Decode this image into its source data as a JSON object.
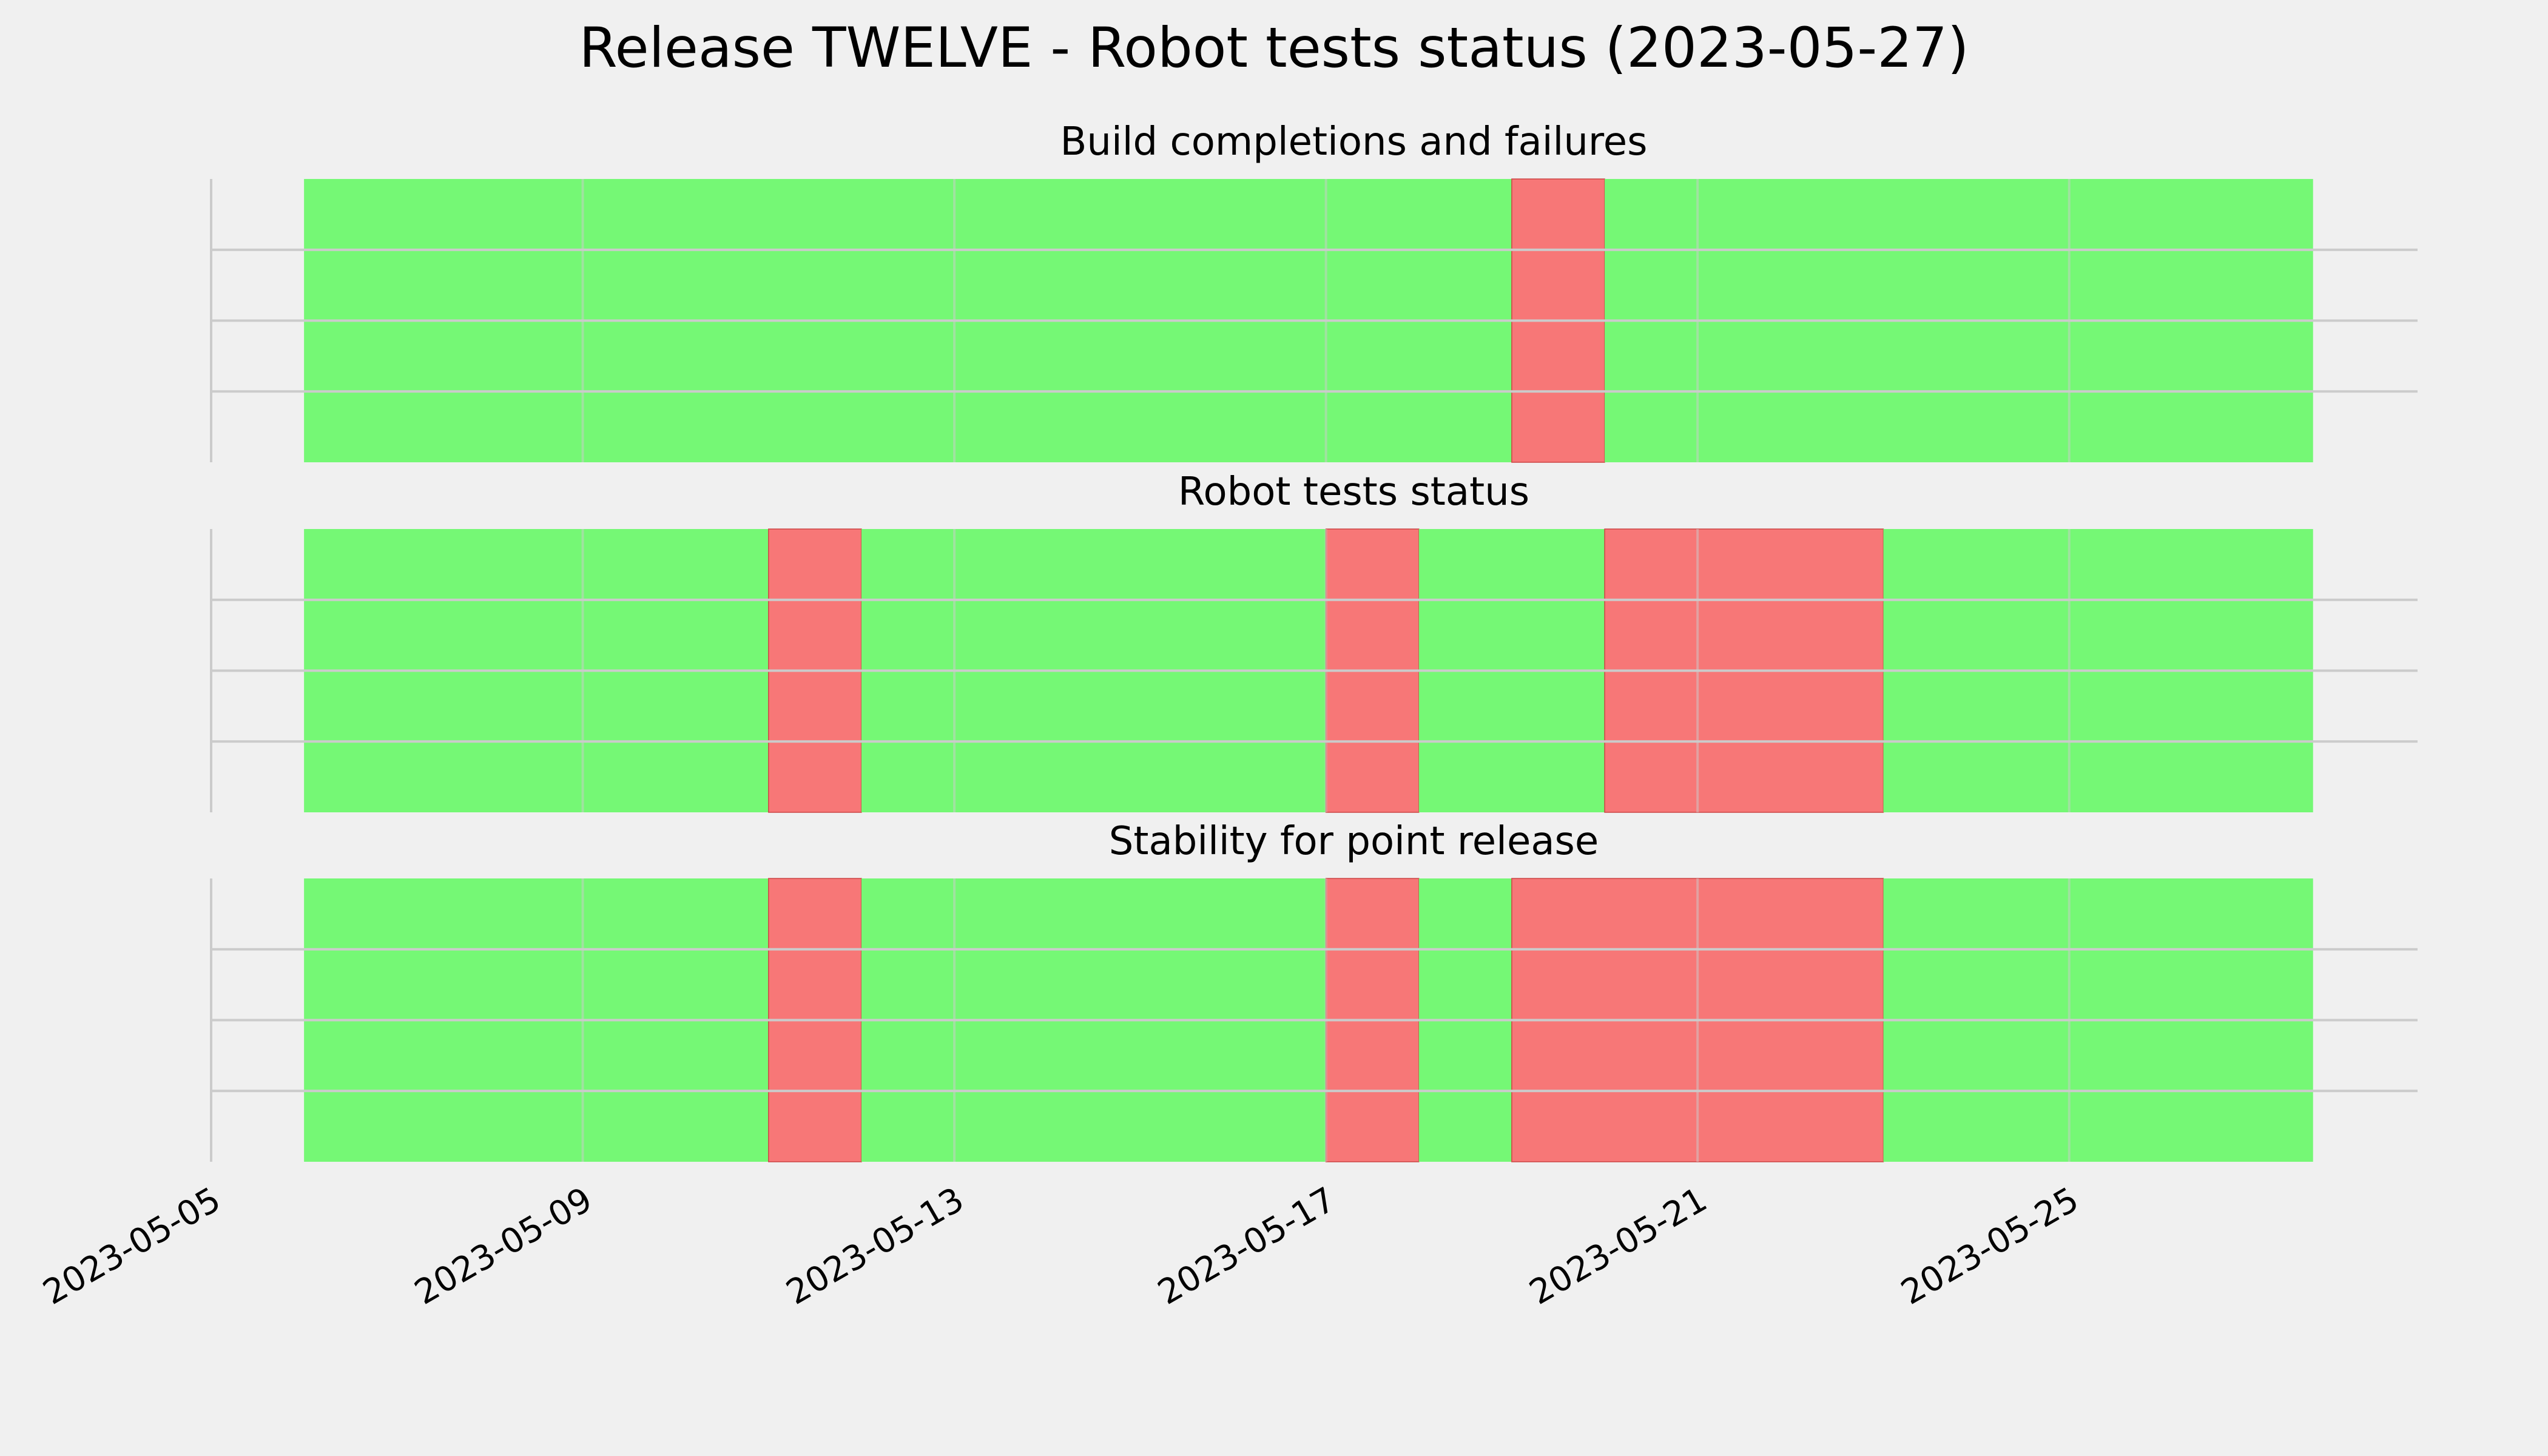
{
  "chart_data": {
    "type": "timeline",
    "title": "Release TWELVE - Robot tests status (2023-05-27)",
    "xlim": [
      "2023-05-05",
      "2023-05-28T18:00"
    ],
    "xticks": [
      "2023-05-05",
      "2023-05-09",
      "2023-05-13",
      "2023-05-17",
      "2023-05-21",
      "2023-05-25"
    ],
    "grid": true,
    "colors": {
      "pass": "#75f875",
      "fail": "#f77777",
      "background": "#f0f0f0",
      "grid": "#cbcbcb"
    },
    "panels": [
      {
        "title": "Build completions and failures",
        "segments": [
          {
            "start": "2023-05-06",
            "end": "2023-05-19",
            "status": "pass"
          },
          {
            "start": "2023-05-19",
            "end": "2023-05-20",
            "status": "fail"
          },
          {
            "start": "2023-05-20",
            "end": "2023-05-27T15:00",
            "status": "pass"
          }
        ]
      },
      {
        "title": "Robot tests status",
        "segments": [
          {
            "start": "2023-05-06",
            "end": "2023-05-11",
            "status": "pass"
          },
          {
            "start": "2023-05-11",
            "end": "2023-05-12",
            "status": "fail"
          },
          {
            "start": "2023-05-12",
            "end": "2023-05-17",
            "status": "pass"
          },
          {
            "start": "2023-05-17",
            "end": "2023-05-18",
            "status": "fail"
          },
          {
            "start": "2023-05-18",
            "end": "2023-05-20",
            "status": "pass"
          },
          {
            "start": "2023-05-20",
            "end": "2023-05-23",
            "status": "fail"
          },
          {
            "start": "2023-05-23",
            "end": "2023-05-27T15:00",
            "status": "pass"
          }
        ]
      },
      {
        "title": "Stability for point release",
        "segments": [
          {
            "start": "2023-05-06",
            "end": "2023-05-11",
            "status": "pass"
          },
          {
            "start": "2023-05-11",
            "end": "2023-05-12",
            "status": "fail"
          },
          {
            "start": "2023-05-12",
            "end": "2023-05-17",
            "status": "pass"
          },
          {
            "start": "2023-05-17",
            "end": "2023-05-18",
            "status": "fail"
          },
          {
            "start": "2023-05-18",
            "end": "2023-05-19",
            "status": "pass"
          },
          {
            "start": "2023-05-19",
            "end": "2023-05-23",
            "status": "fail"
          },
          {
            "start": "2023-05-23",
            "end": "2023-05-27T15:00",
            "status": "pass"
          }
        ]
      }
    ]
  }
}
